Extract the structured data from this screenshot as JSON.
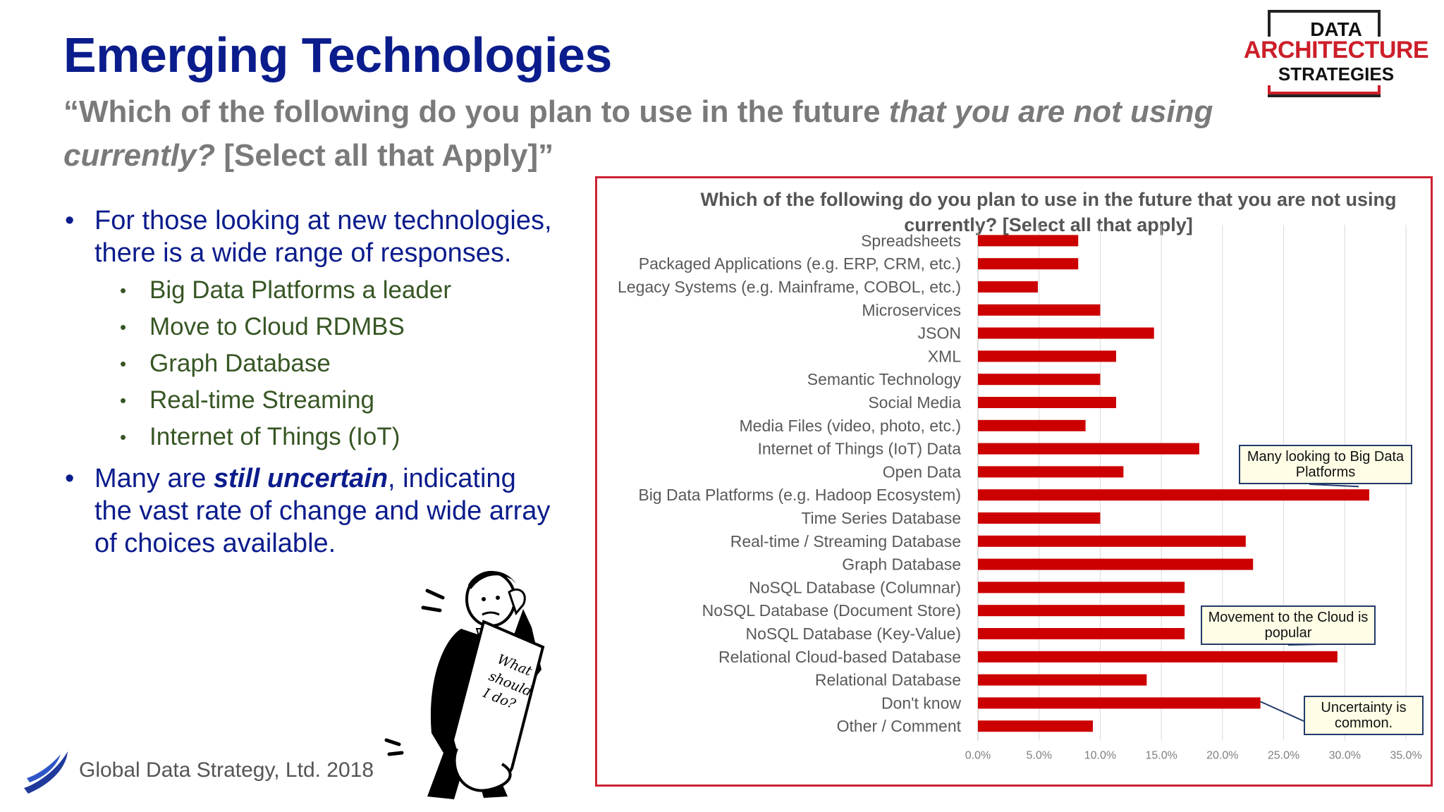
{
  "slide": {
    "title": "Emerging Technologies",
    "subtitle_part1": "“Which of the following do you plan to use in the future ",
    "subtitle_italic": "that you are not using currently?",
    "subtitle_part2": " [Select all that Apply]”"
  },
  "logo": {
    "line1": "DATA",
    "line2": "ARCHITECTURE",
    "line3": "STRATEGIES"
  },
  "bullets": {
    "b1": "For those looking at new technologies, there is a wide range of responses.",
    "subitems": [
      "Big Data Platforms a leader",
      "Move to Cloud RDMBS",
      "Graph Database",
      "Real-time Streaming",
      "Internet of Things (IoT)"
    ],
    "b2_pre": "Many are ",
    "b2_emph": "still uncertain",
    "b2_post": ", indicating the vast rate of change and wide array of choices available."
  },
  "footer": {
    "text": "Global Data Strategy, Ltd. 2018"
  },
  "figure": {
    "scroll_text_1": "What",
    "scroll_text_2": "should",
    "scroll_text_3": "I do?"
  },
  "chart_data": {
    "type": "bar",
    "orientation": "horizontal",
    "title": "Which of the following do you plan to use in the future that you are not using currently? [Select all that apply]",
    "categories": [
      "Spreadsheets",
      "Packaged Applications (e.g. ERP, CRM, etc.)",
      "Legacy Systems (e.g. Mainframe, COBOL, etc.)",
      "Microservices",
      "JSON",
      "XML",
      "Semantic Technology",
      "Social Media",
      "Media Files (video, photo, etc.)",
      "Internet of Things (IoT) Data",
      "Open Data",
      "Big Data Platforms (e.g. Hadoop Ecosystem)",
      "Time Series Database",
      "Real-time / Streaming Database",
      "Graph Database",
      "NoSQL Database (Columnar)",
      "NoSQL Database (Document Store)",
      "NoSQL Database (Key-Value)",
      "Relational Cloud-based Database",
      "Relational Database",
      "Don't know",
      "Other / Comment"
    ],
    "values": [
      8.2,
      8.2,
      4.9,
      10.0,
      14.4,
      11.3,
      10.0,
      11.3,
      8.8,
      18.1,
      11.9,
      32.0,
      10.0,
      21.9,
      22.5,
      16.9,
      16.9,
      16.9,
      29.4,
      13.8,
      23.1,
      9.4
    ],
    "xlim": [
      0,
      35
    ],
    "ticks": [
      "0.0%",
      "5.0%",
      "10.0%",
      "15.0%",
      "20.0%",
      "25.0%",
      "30.0%",
      "35.0%"
    ],
    "bar_color": "#cc0000",
    "grid": true,
    "annotations": [
      {
        "text": "Many looking to Big Data Platforms"
      },
      {
        "text": "Movement to the Cloud is popular"
      },
      {
        "text": "Uncertainty is common."
      }
    ]
  }
}
